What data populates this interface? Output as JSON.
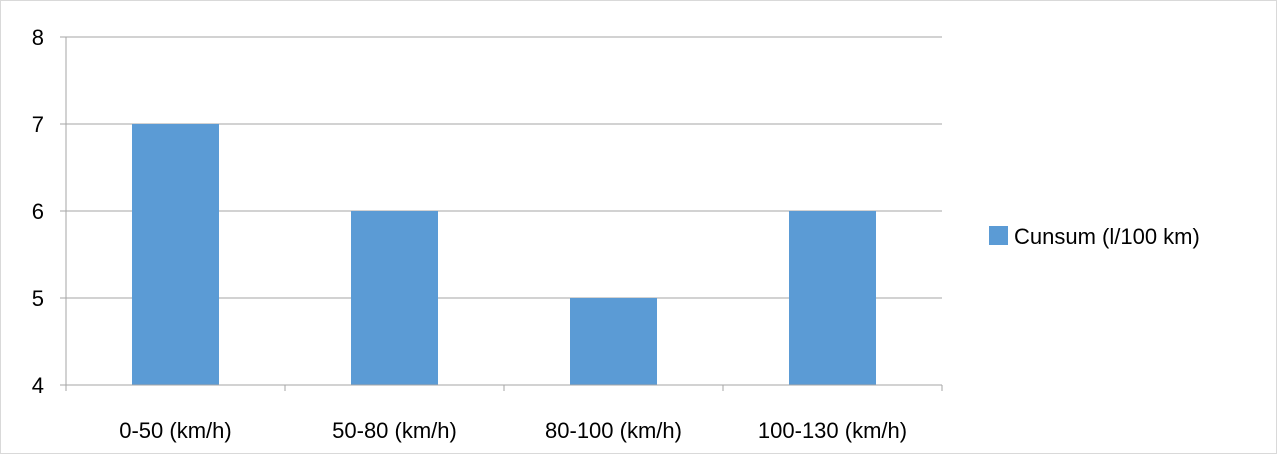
{
  "chart_data": {
    "type": "bar",
    "categories": [
      "0-50 (km/h)",
      "50-80 (km/h)",
      "80-100 (km/h)",
      "100-130 (km/h)"
    ],
    "series": [
      {
        "name": "Cunsum (l/100 km)",
        "values": [
          7,
          6,
          5,
          6
        ],
        "color": "#5b9bd5"
      }
    ],
    "ylim": [
      4,
      8
    ],
    "yticks": [
      4,
      5,
      6,
      7,
      8
    ],
    "grid": true,
    "legend": "right"
  }
}
